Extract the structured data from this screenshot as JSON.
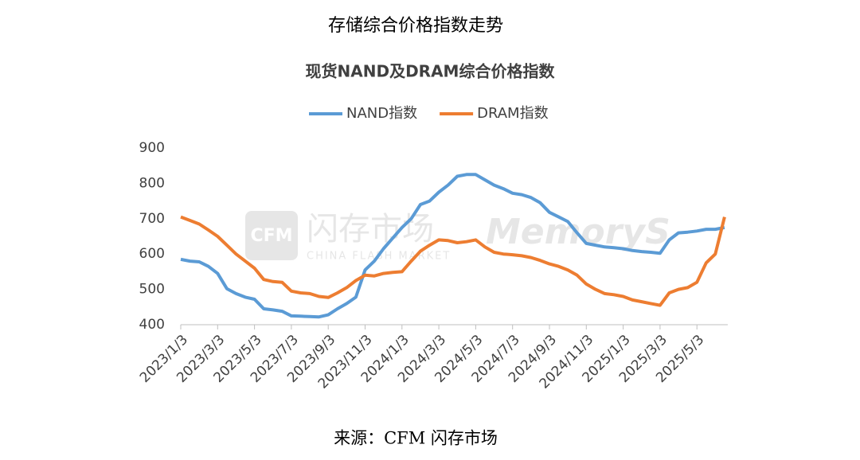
{
  "header": {
    "title": "存储综合价格指数走势"
  },
  "chart_data": {
    "type": "line",
    "title": "现货NAND及DRAM综合价格指数",
    "categories": [
      "2023/1/3",
      null,
      null,
      null,
      "2023/3/3",
      null,
      null,
      null,
      "2023/5/3",
      null,
      null,
      null,
      "2023/7/3",
      null,
      null,
      null,
      "2023/9/3",
      null,
      null,
      null,
      "2023/11/3",
      null,
      null,
      null,
      "2024/1/3",
      null,
      null,
      null,
      "2024/3/3",
      null,
      null,
      null,
      "2024/5/3",
      null,
      null,
      null,
      "2024/7/3",
      null,
      null,
      null,
      "2024/9/3",
      null,
      null,
      null,
      "2024/11/3",
      null,
      null,
      null,
      "2025/1/3",
      null,
      null,
      null,
      "2025/3/3",
      null,
      null,
      null,
      "2025/5/3",
      null,
      null,
      null
    ],
    "series": [
      {
        "name": "NAND指数",
        "color": "#5b9bd5",
        "values": [
          585,
          580,
          578,
          565,
          545,
          502,
          488,
          478,
          472,
          445,
          442,
          438,
          425,
          424,
          423,
          422,
          428,
          445,
          460,
          478,
          555,
          580,
          615,
          645,
          675,
          700,
          740,
          750,
          775,
          795,
          820,
          825,
          825,
          810,
          795,
          785,
          772,
          768,
          760,
          745,
          718,
          705,
          692,
          660,
          630,
          625,
          620,
          618,
          615,
          610,
          607,
          605,
          602,
          640,
          660,
          662,
          665,
          670,
          670,
          675
        ]
      },
      {
        "name": "DRAM指数",
        "color": "#ed7d31",
        "values": [
          705,
          695,
          685,
          668,
          650,
          625,
          600,
          580,
          560,
          528,
          522,
          520,
          495,
          490,
          488,
          480,
          477,
          490,
          505,
          525,
          540,
          538,
          545,
          548,
          550,
          580,
          608,
          625,
          640,
          638,
          632,
          635,
          640,
          620,
          605,
          600,
          598,
          595,
          590,
          582,
          572,
          565,
          555,
          540,
          515,
          500,
          488,
          485,
          480,
          470,
          465,
          460,
          455,
          490,
          500,
          505,
          520,
          575,
          600,
          705
        ]
      }
    ],
    "ylim": [
      400,
      900
    ],
    "yticks": [
      400,
      500,
      600,
      700,
      800,
      900
    ],
    "grid": false,
    "legend": "top"
  },
  "watermark": {
    "logo": "CFM",
    "name": "闪存市场",
    "sub": "CHINA FLASH MARKET",
    "brand": "MemoryS"
  },
  "source": "来源：CFM 闪存市场"
}
